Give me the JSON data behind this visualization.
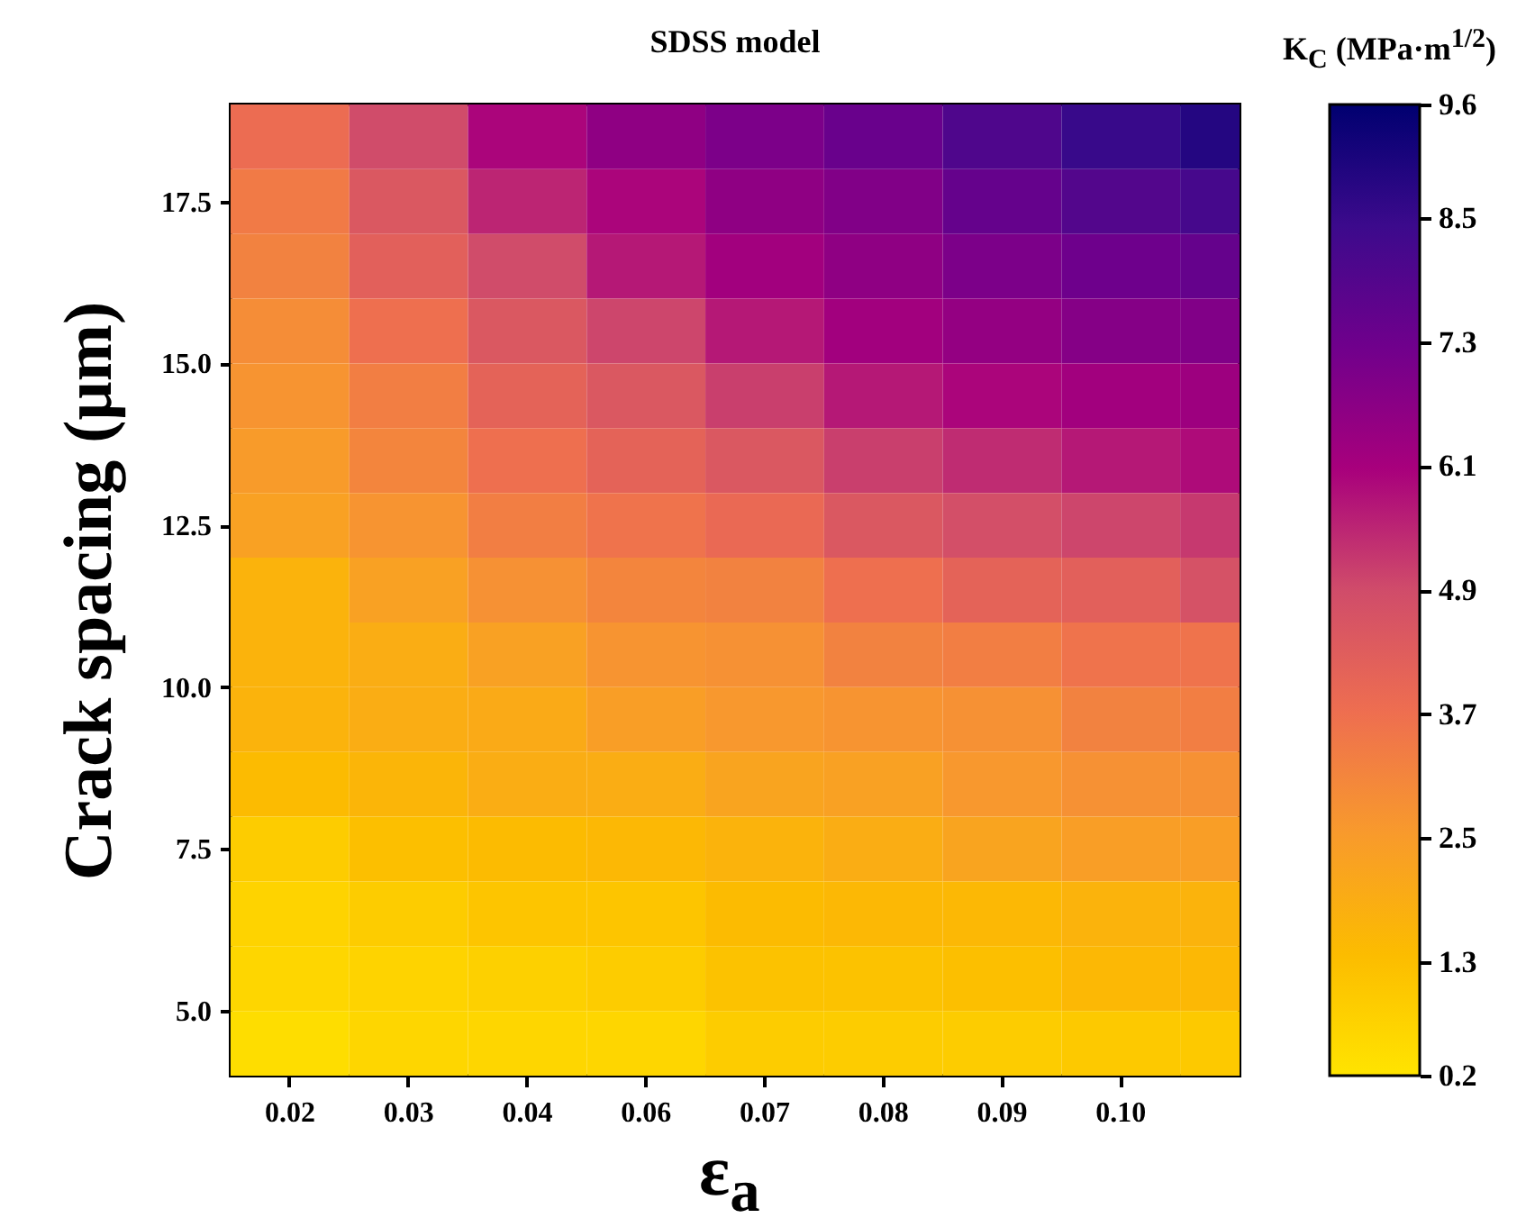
{
  "chart_data": {
    "type": "heatmap",
    "title": "SDSS model",
    "xlabel": "ε$_{a}$",
    "ylabel": "Crack spacing (μm)",
    "clabel": "K$_{C}$ (MPa·m$^{1/2}$)",
    "categories": [
      "0.02",
      "0.03",
      "0.04",
      "0.06",
      "0.07",
      "0.08",
      "0.09",
      "0.10",
      null
    ],
    "ylim": [
      4,
      19
    ],
    "yticks": [
      {
        "value": 5,
        "label": "5.0"
      },
      {
        "value": 7.5,
        "label": "7.5"
      },
      {
        "value": 10,
        "label": "10.0"
      },
      {
        "value": 12.5,
        "label": "12.5"
      },
      {
        "value": 15,
        "label": "15.0"
      },
      {
        "value": 17.5,
        "label": "17.5"
      }
    ],
    "cells": [
      [
        3.8,
        4.9,
        6.0,
        6.6,
        7.0,
        7.4,
        8.0,
        8.5,
        8.9
      ],
      [
        3.4,
        4.5,
        5.5,
        6.0,
        6.6,
        6.9,
        7.5,
        7.9,
        8.2
      ],
      [
        3.2,
        4.2,
        4.9,
        5.7,
        6.2,
        6.6,
        7.0,
        7.3,
        7.5
      ],
      [
        2.9,
        3.7,
        4.5,
        5.0,
        5.7,
        6.2,
        6.5,
        6.8,
        6.9
      ],
      [
        2.7,
        3.3,
        4.1,
        4.5,
        5.1,
        5.7,
        6.0,
        6.2,
        6.3
      ],
      [
        2.5,
        3.1,
        3.7,
        4.1,
        4.5,
        5.1,
        5.4,
        5.7,
        5.9
      ],
      [
        2.3,
        2.7,
        3.3,
        3.6,
        3.9,
        4.5,
        4.8,
        5.0,
        5.2
      ],
      [
        1.7,
        2.3,
        2.8,
        3.1,
        3.2,
        3.7,
        4.1,
        4.2,
        4.7
      ],
      [
        1.7,
        1.9,
        2.3,
        2.7,
        2.8,
        3.2,
        3.3,
        3.6,
        3.6
      ],
      [
        1.7,
        1.9,
        2.0,
        2.4,
        2.6,
        2.7,
        2.8,
        3.2,
        3.3
      ],
      [
        1.4,
        1.6,
        1.9,
        1.9,
        2.2,
        2.3,
        2.6,
        2.8,
        2.8
      ],
      [
        0.9,
        1.3,
        1.4,
        1.5,
        1.7,
        1.9,
        2.2,
        2.4,
        2.4
      ],
      [
        0.7,
        0.9,
        1.1,
        1.1,
        1.4,
        1.5,
        1.5,
        1.7,
        1.7
      ],
      [
        0.6,
        0.7,
        0.8,
        0.9,
        1.2,
        1.2,
        1.3,
        1.5,
        1.5
      ],
      [
        0.4,
        0.6,
        0.6,
        0.6,
        0.9,
        0.9,
        0.9,
        1.0,
        1.0
      ]
    ],
    "clim": [
      0.2,
      9.6
    ],
    "cticks": [
      0.2,
      1.3,
      2.5,
      3.7,
      4.9,
      6.1,
      7.3,
      8.5,
      9.6
    ]
  }
}
